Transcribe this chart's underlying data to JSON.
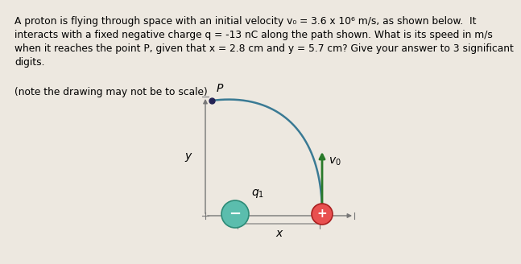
{
  "bg_color": "#ede8e0",
  "text_lines": "A proton is flying through space with an initial velocity v₀ = 3.6 x 10⁶ m/s, as shown below.  It\ninteracts with a fixed negative charge q = -13 nC along the path shown. What is its speed in m/s\nwhen it reaches the point P, given that x = 2.8 cm and y = 5.7 cm? Give your answer to 3 significant\ndigits.",
  "note_line": "(note the drawing may not be to scale)",
  "text_fontsize": 8.8,
  "note_fontsize": 8.8,
  "axis_color": "#777777",
  "curve_color": "#3a7a94",
  "arrow_color": "#2a7a2a",
  "q_circle_color": "#5bbdad",
  "q_circle_edge": "#2e8b77",
  "proton_circle_color": "#e85050",
  "proton_circle_edge": "#aa2020",
  "point_P_color": "#222255",
  "label_fontsize": 10,
  "diagram_label_fontsize": 10
}
